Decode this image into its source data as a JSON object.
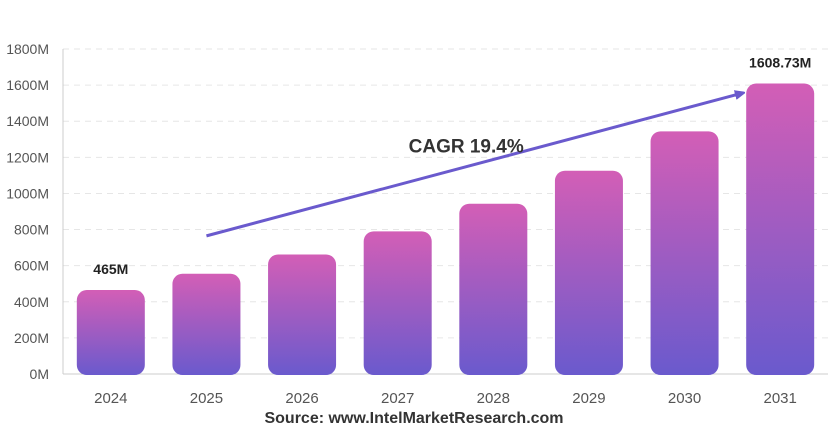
{
  "chart_data": {
    "type": "bar",
    "title": "",
    "xlabel": "",
    "ylabel": "",
    "categories": [
      "2024",
      "2025",
      "2026",
      "2027",
      "2028",
      "2029",
      "2030",
      "2031"
    ],
    "values": [
      465,
      555,
      662,
      790,
      943,
      1126,
      1344,
      1608.73
    ],
    "value_unit_suffix": "M",
    "ylim": [
      0,
      1800
    ],
    "yticks": [
      "0M",
      "200M",
      "400M",
      "600M",
      "800M",
      "1000M",
      "1200M",
      "1400M",
      "1600M",
      "1800M"
    ],
    "data_labels": [
      {
        "category": "2024",
        "text": "465M"
      },
      {
        "category": "2031",
        "text": "1608.73M"
      }
    ],
    "annotation": "CAGR 19.4%",
    "grid": true,
    "colors": {
      "bar_top": "#D35EB6",
      "bar_bottom": "#6A5ACD",
      "arrow": "#6A5ACD"
    }
  },
  "source": "Source: www.IntelMarketResearch.com"
}
